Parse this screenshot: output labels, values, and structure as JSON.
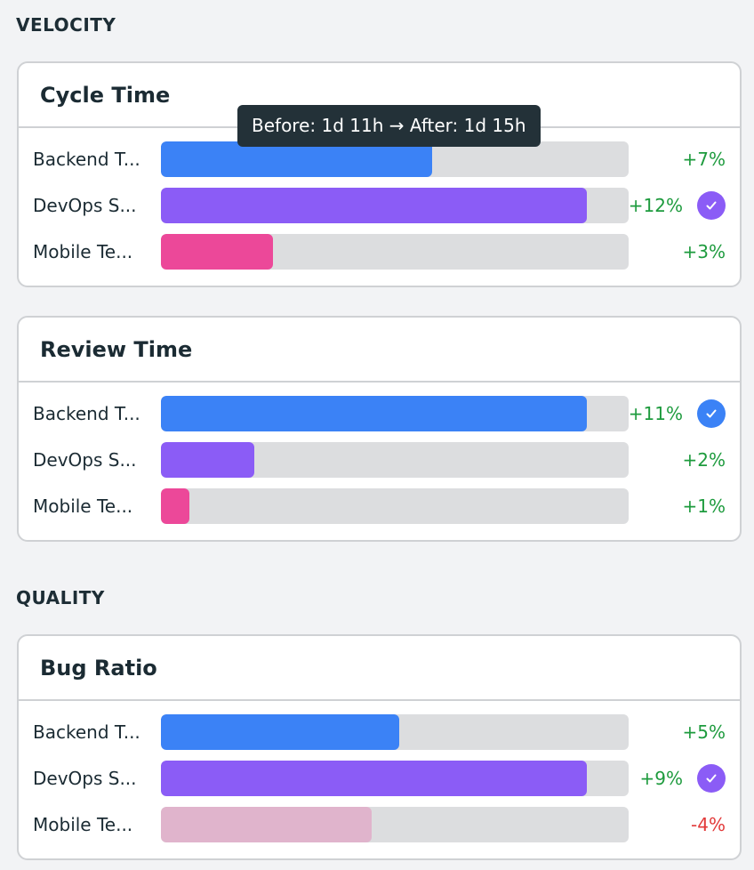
{
  "colors": {
    "backend": "#3b82f6",
    "devops": "#8b5cf6",
    "mobile": "#ec4899",
    "mobile_muted": "#e0b4cc",
    "positive": "#1e9b3e",
    "negative": "#e23a3a",
    "track": "#dcdddf"
  },
  "sections": [
    {
      "title": "VELOCITY",
      "cards": [
        {
          "title": "Cycle Time",
          "tooltip": "Before: 1d 11h → After: 1d 15h",
          "rows": [
            {
              "label": "Backend T...",
              "fill": 0.58,
              "pct": "+7%",
              "color_key": "backend",
              "check": false,
              "negative": false
            },
            {
              "label": "DevOps S...",
              "fill": 0.91,
              "pct": "+12%",
              "color_key": "devops",
              "check": true,
              "negative": false
            },
            {
              "label": "Mobile Te...",
              "fill": 0.24,
              "pct": "+3%",
              "color_key": "mobile",
              "check": false,
              "negative": false
            }
          ]
        },
        {
          "title": "Review Time",
          "rows": [
            {
              "label": "Backend T...",
              "fill": 0.91,
              "pct": "+11%",
              "color_key": "backend",
              "check": true,
              "negative": false
            },
            {
              "label": "DevOps S...",
              "fill": 0.2,
              "pct": "+2%",
              "color_key": "devops",
              "check": false,
              "negative": false
            },
            {
              "label": "Mobile Te...",
              "fill": 0.06,
              "pct": "+1%",
              "color_key": "mobile",
              "check": false,
              "negative": false
            }
          ]
        }
      ]
    },
    {
      "title": "QUALITY",
      "cards": [
        {
          "title": "Bug Ratio",
          "rows": [
            {
              "label": "Backend T...",
              "fill": 0.51,
              "pct": "+5%",
              "color_key": "backend",
              "check": false,
              "negative": false
            },
            {
              "label": "DevOps S...",
              "fill": 0.91,
              "pct": "+9%",
              "color_key": "devops",
              "check": true,
              "negative": false
            },
            {
              "label": "Mobile Te...",
              "fill": 0.45,
              "pct": "-4%",
              "color_key": "mobile_muted",
              "check": false,
              "negative": true
            }
          ]
        }
      ]
    }
  ]
}
